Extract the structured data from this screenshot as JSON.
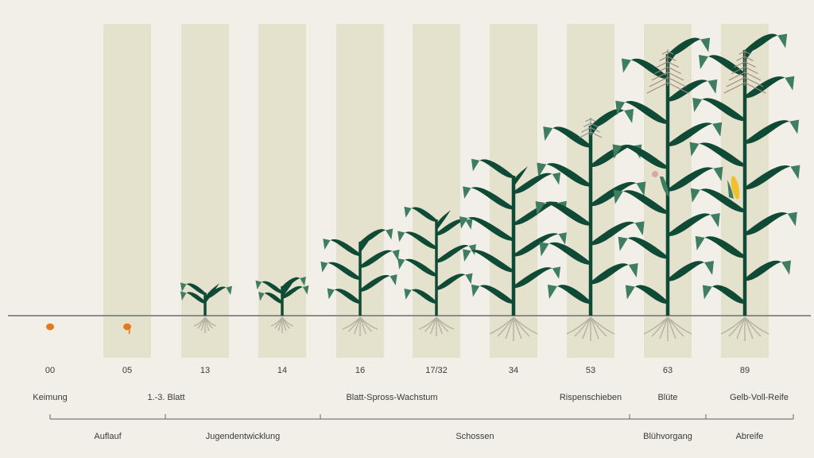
{
  "colors": {
    "background": "#f1efe7",
    "band": "#e4e1cd",
    "leaf_dark": "#0f4a36",
    "leaf_light": "#3f7d60",
    "stem": "#0f4a36",
    "root": "#b5b2a2",
    "seed": "#e37a1e",
    "ground": "#8c8c8a",
    "tassel": "#a08a7a",
    "cob": "#f2c12e",
    "silk": "#d8a9a4",
    "text": "#3b3b3b",
    "bracket": "#7b7b78"
  },
  "stages": [
    {
      "code": "00",
      "type": "seed",
      "band": false,
      "leaves": 0
    },
    {
      "code": "05",
      "type": "sprout",
      "band": true,
      "leaves": 0
    },
    {
      "code": "13",
      "type": "plant",
      "band": true,
      "leaves": 3
    },
    {
      "code": "14",
      "type": "plant",
      "band": true,
      "leaves": 4
    },
    {
      "code": "16",
      "type": "plant",
      "band": true,
      "leaves": 6
    },
    {
      "code": "17/32",
      "type": "plant",
      "band": true,
      "leaves": 7
    },
    {
      "code": "34",
      "type": "plant",
      "band": true,
      "leaves": 9
    },
    {
      "code": "53",
      "type": "plant",
      "band": true,
      "leaves": 10,
      "tassel": "small"
    },
    {
      "code": "63",
      "type": "plant",
      "band": true,
      "leaves": 12,
      "tassel": "large",
      "cob": "silk"
    },
    {
      "code": "89",
      "type": "plant",
      "band": true,
      "leaves": 12,
      "tassel": "large",
      "cob": "ripe"
    }
  ],
  "labels": [
    "Keimung",
    "1.-3. Blatt",
    "Blatt-Spross-Wachstum",
    "Rispenschieben",
    "Blüte",
    "Gelb-Voll-Reife"
  ],
  "phases": [
    "Auflauf",
    "Jugendentwicklung",
    "Schossen",
    "Blühvorgang",
    "Abreife"
  ]
}
